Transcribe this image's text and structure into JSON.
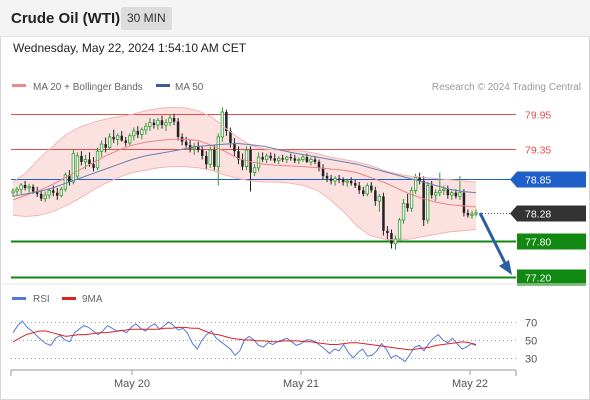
{
  "header": {
    "title": "Crude Oil (WTI)",
    "interval": "30 MIN",
    "datetime": "Wednesday, May 22, 2024 1:54:10 AM CET"
  },
  "credit": "Research © 2024 Trading Central",
  "chart_data": [
    {
      "type": "candlestick",
      "legend_placement": "top-left",
      "legend": [
        {
          "name": "MA 20 + Bollinger Bands",
          "color": "#f08a8a"
        },
        {
          "name": "MA 50",
          "color": "#3a5a98"
        }
      ],
      "last_price": {
        "value": 78.28,
        "label": "78.28",
        "color": "#333333"
      },
      "levels": [
        {
          "value": 79.95,
          "label": "79.95",
          "kind": "resistance",
          "color": "#e05050"
        },
        {
          "value": 79.35,
          "label": "79.35",
          "kind": "resistance",
          "color": "#e05050"
        },
        {
          "value": 78.85,
          "label": "78.85",
          "kind": "pivot",
          "color": "#1f5fc8"
        },
        {
          "value": 77.8,
          "label": "77.80",
          "kind": "support",
          "color": "#118811"
        },
        {
          "value": 77.2,
          "label": "77.20",
          "kind": "support",
          "color": "#118811"
        }
      ],
      "forecast_arrow": {
        "from": 78.28,
        "to": 77.2,
        "color": "#2d5fa0"
      },
      "x_ticks": [
        "May 20",
        "May 21",
        "May 22"
      ],
      "ohlc": [
        [
          78.62,
          78.7,
          78.55,
          78.65
        ],
        [
          78.65,
          78.72,
          78.58,
          78.68
        ],
        [
          78.68,
          78.78,
          78.6,
          78.75
        ],
        [
          78.75,
          78.82,
          78.66,
          78.7
        ],
        [
          78.7,
          78.77,
          78.62,
          78.72
        ],
        [
          78.72,
          78.76,
          78.6,
          78.64
        ],
        [
          78.64,
          78.72,
          78.55,
          78.6
        ],
        [
          78.6,
          78.66,
          78.48,
          78.52
        ],
        [
          78.52,
          78.64,
          78.46,
          78.58
        ],
        [
          78.58,
          78.7,
          78.52,
          78.66
        ],
        [
          78.66,
          78.74,
          78.56,
          78.62
        ],
        [
          78.62,
          78.7,
          78.5,
          78.57
        ],
        [
          78.57,
          78.72,
          78.54,
          78.68
        ],
        [
          78.68,
          78.96,
          78.64,
          78.92
        ],
        [
          78.92,
          79.0,
          78.74,
          78.8
        ],
        [
          78.8,
          79.35,
          78.76,
          79.28
        ],
        [
          78.9,
          79.3,
          78.84,
          79.24
        ],
        [
          79.24,
          79.32,
          79.08,
          79.14
        ],
        [
          79.14,
          79.26,
          79.02,
          79.18
        ],
        [
          79.18,
          79.3,
          79.06,
          79.1
        ],
        [
          79.1,
          79.22,
          78.98,
          79.04
        ],
        [
          79.04,
          79.38,
          79.0,
          79.32
        ],
        [
          79.32,
          79.5,
          79.22,
          79.44
        ],
        [
          79.44,
          79.55,
          79.3,
          79.38
        ],
        [
          79.38,
          79.62,
          79.34,
          79.56
        ],
        [
          79.56,
          79.68,
          79.46,
          79.52
        ],
        [
          79.52,
          79.62,
          79.42,
          79.58
        ],
        [
          79.58,
          79.66,
          79.48,
          79.5
        ],
        [
          79.5,
          79.56,
          79.4,
          79.46
        ],
        [
          79.46,
          79.62,
          79.42,
          79.58
        ],
        [
          79.58,
          79.72,
          79.5,
          79.66
        ],
        [
          79.66,
          79.74,
          79.54,
          79.6
        ],
        [
          79.6,
          79.72,
          79.52,
          79.68
        ],
        [
          79.68,
          79.8,
          79.6,
          79.74
        ],
        [
          79.74,
          79.88,
          79.66,
          79.8
        ],
        [
          79.8,
          79.86,
          79.7,
          79.76
        ],
        [
          79.76,
          79.88,
          79.68,
          79.84
        ],
        [
          79.84,
          79.92,
          79.7,
          79.76
        ],
        [
          79.76,
          79.86,
          79.66,
          79.8
        ],
        [
          79.8,
          79.94,
          79.74,
          79.88
        ],
        [
          79.88,
          79.95,
          79.76,
          79.82
        ],
        [
          79.82,
          79.88,
          79.5,
          79.56
        ],
        [
          79.56,
          79.62,
          79.42,
          79.48
        ],
        [
          79.48,
          79.56,
          79.38,
          79.42
        ],
        [
          79.42,
          79.52,
          79.3,
          79.36
        ],
        [
          79.36,
          79.46,
          79.26,
          79.4
        ],
        [
          79.4,
          79.48,
          79.3,
          79.34
        ],
        [
          79.34,
          79.4,
          79.18,
          79.24
        ],
        [
          79.24,
          79.32,
          79.02,
          79.1
        ],
        [
          79.1,
          79.4,
          79.04,
          79.34
        ],
        [
          79.34,
          79.42,
          79.0,
          79.06
        ],
        [
          79.06,
          79.62,
          78.74,
          79.56
        ],
        [
          79.56,
          80.06,
          79.48,
          79.98
        ],
        [
          79.98,
          80.02,
          79.58,
          79.66
        ],
        [
          79.66,
          79.72,
          79.38,
          79.46
        ],
        [
          79.46,
          79.54,
          79.24,
          79.32
        ],
        [
          79.32,
          79.4,
          79.1,
          79.18
        ],
        [
          79.18,
          79.28,
          79.0,
          79.06
        ],
        [
          79.06,
          79.4,
          79.0,
          79.34
        ],
        [
          79.34,
          79.4,
          78.64,
          78.96
        ],
        [
          78.96,
          79.1,
          78.9,
          79.04
        ],
        [
          79.04,
          79.3,
          78.98,
          79.22
        ],
        [
          79.22,
          79.3,
          79.14,
          79.18
        ],
        [
          79.18,
          79.28,
          79.12,
          79.24
        ],
        [
          79.24,
          79.3,
          79.16,
          79.2
        ],
        [
          79.2,
          79.28,
          79.12,
          79.16
        ],
        [
          79.16,
          79.24,
          79.1,
          79.2
        ],
        [
          79.2,
          79.26,
          79.14,
          79.18
        ],
        [
          79.18,
          79.24,
          79.12,
          79.22
        ],
        [
          79.22,
          79.28,
          79.16,
          79.2
        ],
        [
          79.2,
          79.26,
          79.12,
          79.16
        ],
        [
          79.16,
          79.22,
          79.1,
          79.18
        ],
        [
          79.18,
          79.26,
          79.14,
          79.22
        ],
        [
          79.22,
          79.28,
          79.12,
          79.14
        ],
        [
          79.14,
          79.22,
          79.08,
          79.18
        ],
        [
          79.18,
          79.24,
          79.1,
          79.14
        ],
        [
          79.14,
          79.18,
          78.98,
          79.04
        ],
        [
          79.04,
          79.1,
          78.84,
          78.9
        ],
        [
          78.9,
          78.96,
          78.8,
          78.86
        ],
        [
          78.86,
          78.92,
          78.76,
          78.82
        ],
        [
          78.82,
          78.9,
          78.74,
          78.86
        ],
        [
          78.86,
          78.92,
          78.78,
          78.84
        ],
        [
          78.84,
          78.88,
          78.74,
          78.8
        ],
        [
          78.8,
          78.86,
          78.72,
          78.82
        ],
        [
          78.82,
          78.88,
          78.74,
          78.78
        ],
        [
          78.78,
          78.84,
          78.7,
          78.74
        ],
        [
          78.74,
          78.8,
          78.6,
          78.66
        ],
        [
          78.66,
          78.72,
          78.56,
          78.6
        ],
        [
          78.6,
          78.78,
          78.56,
          78.74
        ],
        [
          78.74,
          78.8,
          78.62,
          78.66
        ],
        [
          78.66,
          78.72,
          78.4,
          78.48
        ],
        [
          78.48,
          78.6,
          78.3,
          78.56
        ],
        [
          78.56,
          78.62,
          77.9,
          77.98
        ],
        [
          77.98,
          78.06,
          77.82,
          77.94
        ],
        [
          77.94,
          78.0,
          77.68,
          77.76
        ],
        [
          77.76,
          77.9,
          77.66,
          77.84
        ],
        [
          77.84,
          78.2,
          77.8,
          78.16
        ],
        [
          78.16,
          78.52,
          78.1,
          78.44
        ],
        [
          78.44,
          78.6,
          78.3,
          78.36
        ],
        [
          78.36,
          78.72,
          78.3,
          78.66
        ],
        [
          78.66,
          78.94,
          78.6,
          78.88
        ],
        [
          78.88,
          78.96,
          78.76,
          78.82
        ],
        [
          78.82,
          78.9,
          78.06,
          78.16
        ],
        [
          78.16,
          78.8,
          78.1,
          78.74
        ],
        [
          78.74,
          78.82,
          78.52,
          78.58
        ],
        [
          78.58,
          78.68,
          78.48,
          78.62
        ],
        [
          78.62,
          78.96,
          78.56,
          78.66
        ],
        [
          78.66,
          78.74,
          78.58,
          78.68
        ],
        [
          78.68,
          78.74,
          78.52,
          78.58
        ],
        [
          78.58,
          78.66,
          78.5,
          78.62
        ],
        [
          78.62,
          78.68,
          78.52,
          78.56
        ],
        [
          78.56,
          78.9,
          78.5,
          78.62
        ],
        [
          78.62,
          78.68,
          78.22,
          78.28
        ],
        [
          78.28,
          78.34,
          78.2,
          78.24
        ],
        [
          78.24,
          78.32,
          78.18,
          78.26
        ],
        [
          78.26,
          78.34,
          78.22,
          78.28
        ]
      ],
      "ma20": [
        78.5,
        78.58,
        78.66,
        78.76,
        78.88,
        79.0,
        79.12,
        79.24,
        79.34,
        79.42,
        79.47,
        79.5,
        79.52,
        79.52,
        79.5,
        79.42,
        79.32,
        79.2,
        79.14,
        79.1,
        79.08,
        79.07,
        79.06,
        79.04,
        79.02,
        79.0,
        78.96,
        78.88,
        78.8,
        78.7,
        78.6,
        78.52,
        78.46,
        78.42,
        78.4,
        78.38
      ],
      "ma50": [
        78.56,
        78.6,
        78.64,
        78.7,
        78.78,
        78.86,
        78.94,
        79.02,
        79.1,
        79.18,
        79.24,
        79.28,
        79.32,
        79.36,
        79.4,
        79.42,
        79.44,
        79.45,
        79.43,
        79.4,
        79.35,
        79.3,
        79.26,
        79.22,
        79.18,
        79.14,
        79.1,
        79.04,
        78.98,
        78.92,
        78.86,
        78.8,
        78.74,
        78.68,
        78.64,
        78.62
      ],
      "upper": [
        78.8,
        78.96,
        79.2,
        79.4,
        79.6,
        79.72,
        79.8,
        79.86,
        79.9,
        79.94,
        80.0,
        80.04,
        80.06,
        80.05,
        80.0,
        79.9,
        79.72,
        79.55,
        79.42,
        79.36,
        79.34,
        79.33,
        79.32,
        79.28,
        79.22,
        79.18,
        79.14,
        79.08,
        79.0,
        78.94,
        78.9,
        78.88,
        78.86,
        78.84,
        78.82,
        78.8
      ],
      "lower": [
        78.24,
        78.22,
        78.24,
        78.3,
        78.4,
        78.52,
        78.66,
        78.78,
        78.88,
        78.96,
        79.0,
        79.04,
        79.06,
        79.06,
        79.04,
        79.0,
        78.92,
        78.86,
        78.82,
        78.8,
        78.8,
        78.78,
        78.74,
        78.66,
        78.5,
        78.3,
        78.06,
        77.9,
        77.84,
        77.82,
        77.84,
        77.88,
        77.92,
        77.96,
        77.98,
        78.0
      ],
      "y_range": [
        77.2,
        80.25
      ]
    },
    {
      "type": "line",
      "legend": [
        {
          "name": "RSI",
          "color": "#5577dd"
        },
        {
          "name": "9MA",
          "color": "#dd2222"
        }
      ],
      "y_ticks": [
        70,
        50,
        30
      ],
      "y_range": [
        20,
        80
      ],
      "rsi": [
        58,
        66,
        71,
        64,
        60,
        55,
        50,
        46,
        44,
        52,
        55,
        50,
        48,
        58,
        62,
        66,
        64,
        60,
        56,
        60,
        66,
        63,
        60,
        61,
        58,
        64,
        68,
        63,
        60,
        65,
        68,
        62,
        66,
        70,
        66,
        61,
        63,
        57,
        46,
        40,
        50,
        56,
        60,
        52,
        48,
        44,
        40,
        33,
        38,
        50,
        54,
        50,
        44,
        42,
        47,
        45,
        48,
        50,
        52,
        48,
        44,
        46,
        50,
        50,
        48,
        44,
        40,
        35,
        40,
        38,
        45,
        36,
        30,
        36,
        40,
        32,
        33,
        38,
        46,
        40,
        30,
        33,
        30,
        26,
        34,
        42,
        44,
        38,
        46,
        52,
        56,
        50,
        47,
        52,
        46,
        40,
        42,
        46,
        44
      ],
      "ma9": [
        48,
        52,
        56,
        58,
        60,
        60,
        58,
        56,
        54,
        55,
        56,
        56,
        57,
        58,
        58,
        59,
        60,
        61,
        62,
        62,
        62,
        62,
        62,
        63,
        63,
        64,
        64,
        63,
        63,
        60,
        57,
        56,
        54,
        52,
        51,
        50,
        50,
        49,
        49,
        48,
        48,
        49,
        49,
        49,
        48,
        48,
        47,
        46,
        45,
        45,
        46,
        47,
        47,
        46,
        45,
        44,
        43,
        42,
        41,
        40,
        39,
        40,
        41,
        42,
        44,
        45,
        46,
        47,
        48,
        47,
        45
      ]
    }
  ]
}
